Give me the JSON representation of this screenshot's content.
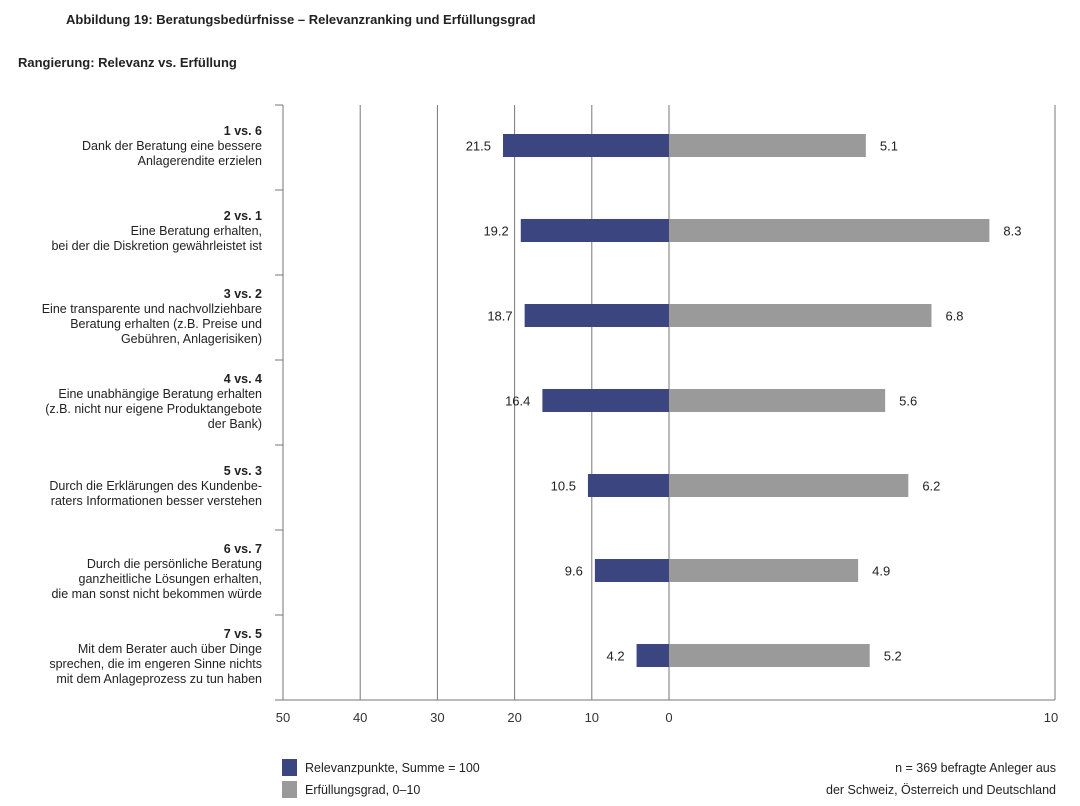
{
  "chart_data": {
    "type": "bar",
    "title": "Abbildung 19: Beratungsbedürfnisse – Relevanzranking und Erfüllungsgrad",
    "subtitle": "Rangierung: Relevanz vs. Erfüllung",
    "categories": [
      {
        "rank": "1 vs. 6",
        "text": [
          "Dank der Beratung eine bessere",
          "Anlagerendite erzielen"
        ]
      },
      {
        "rank": "2 vs. 1",
        "text": [
          "Eine Beratung erhalten,",
          "bei der die Diskretion gewährleistet ist"
        ]
      },
      {
        "rank": "3 vs. 2",
        "text": [
          "Eine transparente und nachvollziehbare",
          "Beratung erhalten (z.B. Preise und",
          "Gebühren, Anlagerisiken)"
        ]
      },
      {
        "rank": "4 vs. 4",
        "text": [
          "Eine unabhängige Beratung erhalten",
          "(z.B. nicht nur eigene Produktangebote",
          "der Bank)"
        ]
      },
      {
        "rank": "5 vs. 3",
        "text": [
          "Durch die Erklärungen des Kundenbe-",
          "raters Informationen besser verstehen"
        ]
      },
      {
        "rank": "6 vs. 7",
        "text": [
          "Durch die persönliche Beratung",
          "ganzheitliche Lösungen erhalten,",
          "die man sonst nicht bekommen würde"
        ]
      },
      {
        "rank": "7 vs. 5",
        "text": [
          "Mit dem Berater auch über Dinge",
          "sprechen, die im engeren Sinne nichts",
          "mit dem Anlageprozess zu tun haben"
        ]
      }
    ],
    "series": [
      {
        "name": "Relevanzpunkte, Summe = 100",
        "color": "#3b4680",
        "values": [
          21.5,
          19.2,
          18.7,
          16.4,
          10.5,
          9.6,
          4.2
        ],
        "labels": [
          "21.5",
          "19.2",
          "18.7",
          "16.4",
          "10.5",
          "9.6",
          "4.2"
        ],
        "xlim": [
          50,
          0
        ]
      },
      {
        "name": "Erfüllungsgrad, 0–10",
        "color": "#9a9a9a",
        "values": [
          5.1,
          8.3,
          6.8,
          5.6,
          6.2,
          4.9,
          5.2
        ],
        "labels": [
          "5.1",
          "8.3",
          "6.8",
          "5.6",
          "6.2",
          "4.9",
          "5.2"
        ],
        "xlim": [
          0,
          10
        ]
      }
    ],
    "left_ticks": [
      "50",
      "40",
      "30",
      "20",
      "10",
      "0"
    ],
    "right_ticks": [
      "10"
    ],
    "note": [
      "n = 369 befragte Anleger aus",
      "der Schweiz, Österreich und Deutschland"
    ]
  }
}
